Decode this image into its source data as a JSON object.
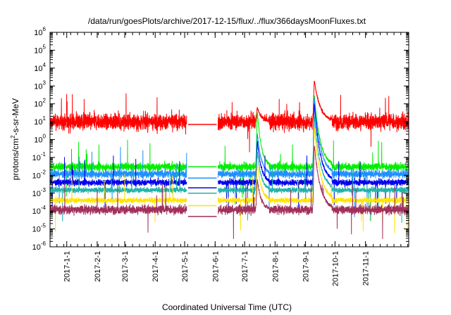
{
  "chart_data": {
    "type": "line",
    "title": "/data/run/goesPlots/archive/2017-12-15/flux/../flux/366daysMoonFluxes.txt",
    "xlabel": "Coordinated Universal Time (UTC)",
    "ylabel": "protons/cm2-s-sr-MeV",
    "y_scale": "log",
    "ylim": [
      1e-06,
      1000000.0
    ],
    "y_ticks": [
      {
        "base": "10",
        "exp": "-6"
      },
      {
        "base": "10",
        "exp": "-5"
      },
      {
        "base": "10",
        "exp": "-4"
      },
      {
        "base": "10",
        "exp": "-3"
      },
      {
        "base": "10",
        "exp": "-2"
      },
      {
        "base": "10",
        "exp": "-1"
      },
      {
        "base": "10",
        "exp": "0"
      },
      {
        "base": "10",
        "exp": "1"
      },
      {
        "base": "10",
        "exp": "2"
      },
      {
        "base": "10",
        "exp": "3"
      },
      {
        "base": "10",
        "exp": "4"
      },
      {
        "base": "10",
        "exp": "5"
      },
      {
        "base": "10",
        "exp": "6"
      }
    ],
    "xlim": [
      "2016-12-15",
      "2017-12-15"
    ],
    "x_ticks": [
      "2017-1-1",
      "2017-2-1",
      "2017-3-1",
      "2017-4-1",
      "2017-5-1",
      "2017-6-1",
      "2017-7-1",
      "2017-8-1",
      "2017-9-1",
      "2017-10-1",
      "2017-11-1"
    ],
    "gap": [
      "2017-05-03",
      "2017-06-04"
    ],
    "series": [
      {
        "color": "#ff0000",
        "baseline": 10,
        "gap_level": 7,
        "noise_decades": 0.45
      },
      {
        "color": "#00ee00",
        "baseline": 0.03,
        "gap_level": 0.03,
        "noise_decades": 0.22
      },
      {
        "color": "#1e90ff",
        "baseline": 0.012,
        "gap_level": 0.007,
        "noise_decades": 0.22
      },
      {
        "color": "#0000ee",
        "baseline": 0.004,
        "gap_level": 0.002,
        "noise_decades": 0.18
      },
      {
        "color": "#20b2aa",
        "baseline": 0.0015,
        "gap_level": 0.001,
        "noise_decades": 0.15
      },
      {
        "color": "#ffe400",
        "baseline": 0.0004,
        "gap_level": 0.0002,
        "noise_decades": 0.15
      },
      {
        "color": "#a0305a",
        "baseline": 0.00012,
        "gap_level": 5e-05,
        "noise_decades": 0.25
      }
    ],
    "events": [
      {
        "date": "2017-07-14",
        "peaks": [
          60,
          40,
          2,
          0.8,
          0.2,
          0.05,
          0.005
        ]
      },
      {
        "date": "2017-09-10",
        "peaks": [
          2000,
          300,
          200,
          100,
          20,
          5,
          0.5
        ]
      }
    ],
    "grid": false,
    "legend": "none"
  }
}
